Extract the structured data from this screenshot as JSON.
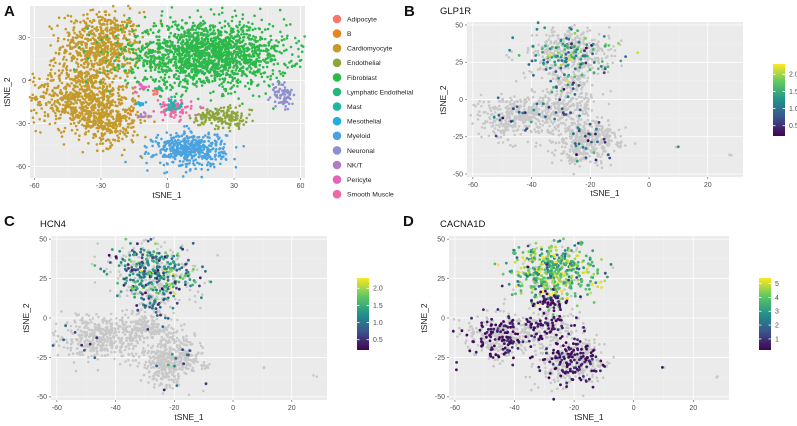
{
  "figure_title": "",
  "cell_types": [
    {
      "name": "Adipocyte",
      "color": "#f8766d"
    },
    {
      "name": "B",
      "color": "#e5861f"
    },
    {
      "name": "Cardiomyocyte",
      "color": "#c49a2b"
    },
    {
      "name": "Endothelial",
      "color": "#8ea53b"
    },
    {
      "name": "Fibroblast",
      "color": "#2db84a"
    },
    {
      "name": "Lymphatic Endothelial",
      "color": "#26b87a"
    },
    {
      "name": "Mast",
      "color": "#22b5a6"
    },
    {
      "name": "Mesothelial",
      "color": "#24aedd"
    },
    {
      "name": "Myeloid",
      "color": "#4aa3df"
    },
    {
      "name": "Neuronal",
      "color": "#8f8fd0"
    },
    {
      "name": "NK/T",
      "color": "#b07fc2"
    },
    {
      "name": "Pericyte",
      "color": "#e265b8"
    },
    {
      "name": "Smooth Muscle",
      "color": "#ef67a6"
    }
  ],
  "colors": {
    "panel_bg": "#ebebeb",
    "grid": "#ffffff",
    "gray_cells": "#c8c8c8"
  },
  "chart_data": [
    {
      "panel": "A",
      "type": "scatter",
      "title": "",
      "xlabel": "tSNE_1",
      "ylabel": "tSNE_2",
      "xlim": [
        -62,
        62
      ],
      "ylim": [
        -68,
        52
      ],
      "xticks": [
        -60,
        -30,
        0,
        30,
        60
      ],
      "yticks": [
        -60,
        -30,
        0,
        30
      ],
      "xtick_labels": [
        "-60",
        "-30",
        "0",
        "30",
        "60"
      ],
      "ytick_labels": [
        "-60",
        "-30",
        "0",
        "30"
      ],
      "legend_position": "right",
      "clusters": [
        {
          "type": "Cardiomyocyte",
          "cx": -30,
          "cy": 24,
          "sx": 9,
          "sy": 12,
          "n": 650
        },
        {
          "type": "Cardiomyocyte",
          "cx": -40,
          "cy": -12,
          "sx": 11,
          "sy": 11,
          "n": 620
        },
        {
          "type": "Cardiomyocyte",
          "cx": -26,
          "cy": -28,
          "sx": 7,
          "sy": 9,
          "n": 320
        },
        {
          "type": "Fibroblast",
          "cx": 18,
          "cy": 18,
          "sx": 18,
          "sy": 11,
          "n": 1700
        },
        {
          "type": "Myeloid",
          "cx": 10,
          "cy": -48,
          "sx": 8,
          "sy": 6,
          "n": 450
        },
        {
          "type": "Endothelial",
          "cx": 28,
          "cy": -26,
          "sx": 5,
          "sy": 4,
          "n": 110
        },
        {
          "type": "Endothelial",
          "cx": 17,
          "cy": -26,
          "sx": 3,
          "sy": 2.5,
          "n": 50
        },
        {
          "type": "Smooth Muscle",
          "cx": 3,
          "cy": -20,
          "sx": 4,
          "sy": 3,
          "n": 90
        },
        {
          "type": "Mast",
          "cx": 3,
          "cy": -17,
          "sx": 2,
          "sy": 2,
          "n": 30
        },
        {
          "type": "Neuronal",
          "cx": 52,
          "cy": -10,
          "sx": 2.5,
          "sy": 5,
          "n": 70
        },
        {
          "type": "Pericyte",
          "cx": -12,
          "cy": -5,
          "sx": 1.5,
          "sy": 1.5,
          "n": 15
        },
        {
          "type": "Adipocyte",
          "cx": -5,
          "cy": -8,
          "sx": 1.2,
          "sy": 1.2,
          "n": 10
        },
        {
          "type": "NK/T",
          "cx": -10,
          "cy": -25,
          "sx": 1.5,
          "sy": 1.5,
          "n": 10
        },
        {
          "type": "Lymphatic Endothelial",
          "cx": -4,
          "cy": -6,
          "sx": 1,
          "sy": 1,
          "n": 10
        },
        {
          "type": "Mesothelial",
          "cx": -12,
          "cy": -16,
          "sx": 1.5,
          "sy": 1,
          "n": 10
        },
        {
          "type": "B",
          "cx": -17,
          "cy": -22,
          "sx": 1,
          "sy": 1,
          "n": 8
        }
      ]
    },
    {
      "panel": "B",
      "type": "scatter",
      "title": "GLP1R",
      "xlabel": "tSNE_1",
      "ylabel": "tSNE_2",
      "xlim": [
        -62,
        32
      ],
      "ylim": [
        -52,
        52
      ],
      "xticks": [
        -60,
        -40,
        -20,
        0,
        20
      ],
      "yticks": [
        -50,
        -25,
        0,
        25,
        50
      ],
      "xtick_labels": [
        "-60",
        "-40",
        "-20",
        "0",
        "20"
      ],
      "ytick_labels": [
        "-50",
        "-25",
        "0",
        "25",
        "50"
      ],
      "colorbar": {
        "min": 0.2,
        "max": 2.3,
        "ticks": [
          0.5,
          1.0,
          1.5,
          2.0
        ],
        "tick_labels": [
          "0.5",
          "1.0",
          "1.5",
          "2.0"
        ],
        "palette": "viridis"
      },
      "expression": {
        "top_frac": 0.28,
        "bottom_frac": 0.05,
        "mean": 1.3
      }
    },
    {
      "panel": "C",
      "type": "scatter",
      "title": "HCN4",
      "xlabel": "tSNE_1",
      "ylabel": "tSNE_2",
      "xlim": [
        -62,
        32
      ],
      "ylim": [
        -52,
        52
      ],
      "xticks": [
        -60,
        -40,
        -20,
        0,
        20
      ],
      "yticks": [
        -50,
        -25,
        0,
        25,
        50
      ],
      "xtick_labels": [
        "-60",
        "-40",
        "-20",
        "0",
        "20"
      ],
      "ytick_labels": [
        "-50",
        "-25",
        "0",
        "25",
        "50"
      ],
      "colorbar": {
        "min": 0.2,
        "max": 2.3,
        "ticks": [
          0.5,
          1.0,
          1.5,
          2.0
        ],
        "tick_labels": [
          "0.5",
          "1.0",
          "1.5",
          "2.0"
        ],
        "palette": "viridis"
      },
      "expression": {
        "top_frac": 0.55,
        "bottom_frac": 0.02,
        "mean": 1.2
      }
    },
    {
      "panel": "D",
      "type": "scatter",
      "title": "CACNA1D",
      "xlabel": "tSNE_1",
      "ylabel": "tSNE_2",
      "xlim": [
        -62,
        32
      ],
      "ylim": [
        -52,
        52
      ],
      "xticks": [
        -60,
        -40,
        -20,
        0,
        20
      ],
      "yticks": [
        -50,
        -25,
        0,
        25,
        50
      ],
      "xtick_labels": [
        "-60",
        "-40",
        "-20",
        "0",
        "20"
      ],
      "ytick_labels": [
        "-50",
        "-25",
        "0",
        "25",
        "50"
      ],
      "colorbar": {
        "min": 0.2,
        "max": 5.4,
        "ticks": [
          1,
          2,
          3,
          4,
          5
        ],
        "tick_labels": [
          "1",
          "2",
          "3",
          "4",
          "5"
        ],
        "palette": "viridis"
      },
      "expression": {
        "top_frac": 0.9,
        "bottom_frac": 0.3,
        "mean": 3.8,
        "bottom_mean": 0.5
      }
    }
  ]
}
